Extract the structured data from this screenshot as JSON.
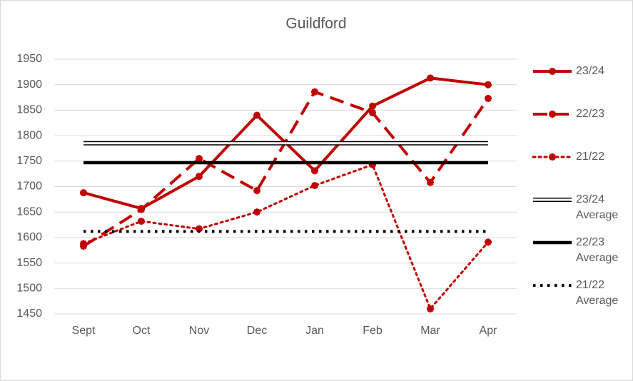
{
  "chart_data": {
    "type": "line",
    "title": "Guildford",
    "categories": [
      "Sept",
      "Oct",
      "Nov",
      "Dec",
      "Jan",
      "Feb",
      "Mar",
      "Apr"
    ],
    "series": [
      {
        "name": "23/24",
        "color": "#c00000",
        "line_style": "solid",
        "marker": "circle",
        "values": [
          1688,
          1657,
          1720,
          1840,
          1731,
          1858,
          1913,
          1900
        ]
      },
      {
        "name": "22/23",
        "color": "#c00000",
        "line_style": "dashed",
        "marker": "star",
        "values": [
          1583,
          1655,
          1755,
          1692,
          1886,
          1845,
          1708,
          1873
        ]
      },
      {
        "name": "21/22",
        "color": "#c00000",
        "line_style": "dotted",
        "marker": "star",
        "values": [
          1588,
          1632,
          1617,
          1650,
          1702,
          1743,
          1460,
          1591
        ]
      },
      {
        "name": "23/24 Average",
        "color": "#000000",
        "line_style": "hollow",
        "marker": "none",
        "values": [
          1785,
          1785,
          1785,
          1785,
          1785,
          1785,
          1785,
          1785
        ]
      },
      {
        "name": "22/23 Average",
        "color": "#000000",
        "line_style": "solid",
        "marker": "none",
        "values": [
          1747,
          1747,
          1747,
          1747,
          1747,
          1747,
          1747,
          1747
        ]
      },
      {
        "name": "21/22 Average",
        "color": "#000000",
        "line_style": "dotted",
        "marker": "none",
        "values": [
          1612,
          1612,
          1612,
          1612,
          1612,
          1612,
          1612,
          1612
        ]
      }
    ],
    "ylim": [
      1450,
      1950
    ],
    "yticks": [
      1450,
      1500,
      1550,
      1600,
      1650,
      1700,
      1750,
      1800,
      1850,
      1900,
      1950
    ],
    "grid": true,
    "legend": "right"
  }
}
